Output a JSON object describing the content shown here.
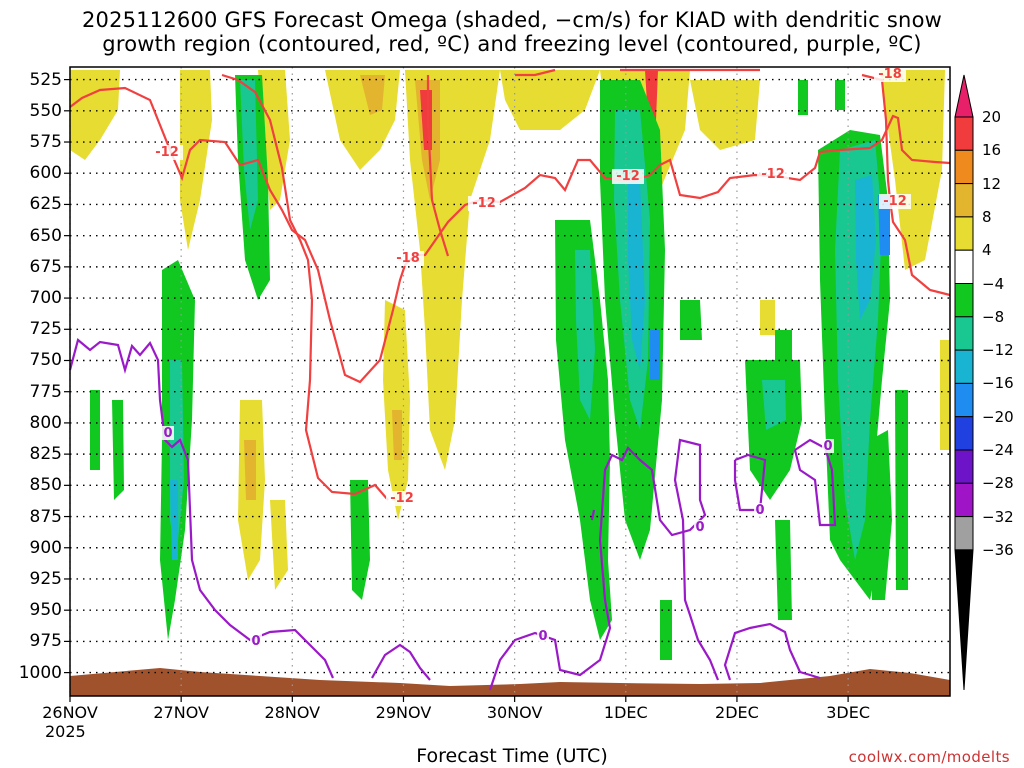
{
  "chart_data": {
    "type": "heatmap",
    "title": "2025112600 GFS Forecast Omega (shaded, −cm/s) for KIAD with dendritic snow",
    "subtitle": "growth region (contoured, red, ºC) and freezing level (contoured, purple, ºC)",
    "xlabel": "Forecast Time (UTC)",
    "ylabel": "",
    "year_label": "2025",
    "x_ticks": [
      "26NOV",
      "27NOV",
      "28NOV",
      "29NOV",
      "30NOV",
      "1DEC",
      "2DEC",
      "3DEC"
    ],
    "y_ticks": [
      525,
      550,
      575,
      600,
      625,
      650,
      675,
      700,
      725,
      750,
      775,
      800,
      825,
      850,
      875,
      900,
      925,
      950,
      975,
      1000
    ],
    "colorbar": {
      "labels": [
        "20",
        "16",
        "12",
        "8",
        "4",
        "−4",
        "−8",
        "−12",
        "−16",
        "−20",
        "−24",
        "−28",
        "−32",
        "−36"
      ],
      "colors": [
        "#e8206a",
        "#f03c3c",
        "#ef8a1e",
        "#e3b42e",
        "#e6dc32",
        "#ffffff",
        "#10c820",
        "#18c890",
        "#18b4d2",
        "#1e8cf0",
        "#2040e0",
        "#6e14c8",
        "#a014c8",
        "#a0a0a0",
        "#000000"
      ]
    },
    "contour_labels": {
      "dgz": [
        "-12",
        "-18",
        "-12",
        "-12",
        "-12",
        "-18",
        "-12",
        "-12"
      ],
      "freezing": [
        "0",
        "0",
        "0",
        "0",
        "0",
        "0"
      ]
    },
    "colors": {
      "dgz_line": "#f04040",
      "freezing_line": "#9a1ac8",
      "terrain": "#a0522d",
      "grid": "#000000"
    },
    "credit": "coolwx.com/modelts"
  }
}
